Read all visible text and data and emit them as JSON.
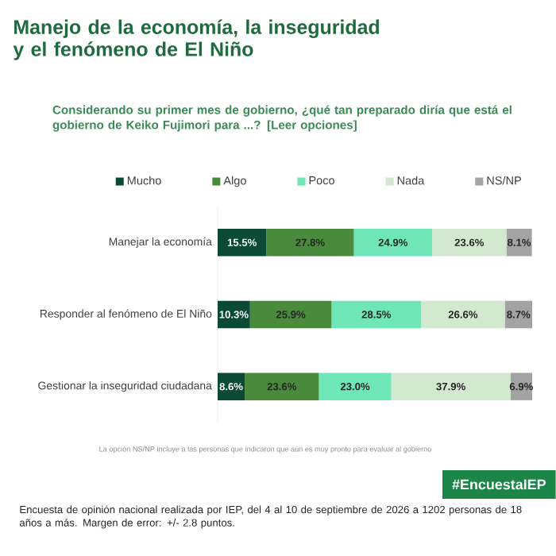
{
  "chart_data": {
    "type": "bar",
    "orientation": "horizontal",
    "stacked": true,
    "title": "Manejo de la economía, la inseguridad y el fenómeno de El Niño",
    "subtitle": "Considerando su primer mes de gobierno, ¿qué tan preparado diría que está el gobierno de Keiko Fujimori para ...? [Leer opciones]",
    "categories": [
      "Manejar la economía",
      "Responder al fenómeno de El Niño",
      "Gestionar la inseguridad ciudadana"
    ],
    "series": [
      {
        "name": "Mucho",
        "color": "#0b4a35",
        "values": [
          15.5,
          10.3,
          8.6
        ],
        "value_labels": [
          "15.5%",
          "10.3%",
          "8.6%"
        ]
      },
      {
        "name": "Algo",
        "color": "#4a8a3c",
        "values": [
          27.8,
          25.9,
          23.6
        ],
        "value_labels": [
          "27.8%",
          "25.9%",
          "23.6%"
        ]
      },
      {
        "name": "Poco",
        "color": "#6ee6b8",
        "values": [
          24.9,
          28.5,
          23.0
        ],
        "value_labels": [
          "24.9%",
          "28.5%",
          "23.0%"
        ]
      },
      {
        "name": "Nada",
        "color": "#d2e9cf",
        "values": [
          23.6,
          26.6,
          37.9
        ],
        "value_labels": [
          "23.6%",
          "26.6%",
          "37.9%"
        ]
      },
      {
        "name": "NS/NP",
        "color": "#a3a3a3",
        "values": [
          8.1,
          8.7,
          6.9
        ],
        "value_labels": [
          "8.1%",
          "8.7%",
          "6.9%"
        ]
      }
    ],
    "legend": "top",
    "tick_labels": "y",
    "grid": false,
    "annotations": [
      "La opción NS/NP incluye a las personas que indicaron que aún es muy pronto para evaluar al gobierno",
      "#EncuestaIEP",
      "Encuesta de opinión nacional realizada por IEP, del 4 al 10 de septiembre de 2026 a 1202 personas de 18 años a más. Margen de error: +/- 2.8 puntos."
    ]
  }
}
